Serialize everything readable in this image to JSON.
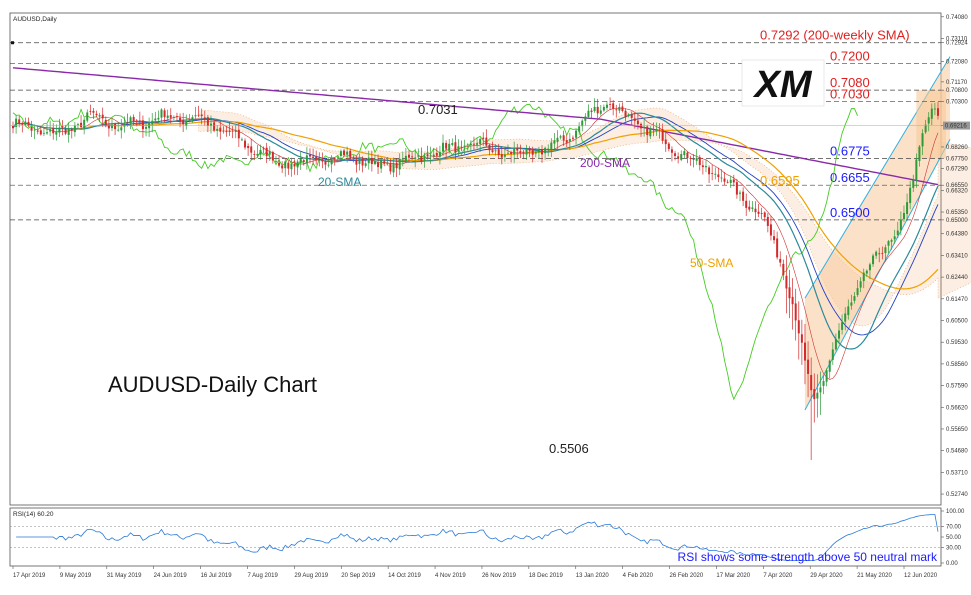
{
  "chart_data": {
    "type": "candlestick",
    "symbol_label": "AUDUSD,Daily",
    "title": "AUDUSD-Daily Chart",
    "logo_text": "XM",
    "price_axis": {
      "ylim": [
        0.5225,
        0.7425
      ],
      "ticks": [
        "0.74080",
        "0.73110",
        "0.72924",
        "0.72080",
        "0.71170",
        "0.70800",
        "0.70300",
        "0.69210",
        "0.68260",
        "0.67750",
        "0.67290",
        "0.66550",
        "0.66320",
        "0.65350",
        "0.65000",
        "0.64380",
        "0.63410",
        "0.62440",
        "0.61470",
        "0.60500",
        "0.59530",
        "0.58560",
        "0.57590",
        "0.56620",
        "0.55650",
        "0.54680",
        "0.53710",
        "0.52740"
      ],
      "current_price_tag": "0.69216"
    },
    "date_axis": {
      "labels": [
        "17 Apr 2019",
        "9 May 2019",
        "31 May 2019",
        "24 Jun 2019",
        "16 Jul 2019",
        "7 Aug 2019",
        "29 Aug 2019",
        "20 Sep 2019",
        "14 Oct 2019",
        "4 Nov 2019",
        "26 Nov 2019",
        "18 Dec 2019",
        "13 Jan 2020",
        "4 Feb 2020",
        "26 Feb 2020",
        "17 Mar 2020",
        "7 Apr 2020",
        "29 Apr 2020",
        "21 May 2020",
        "12 Jun 2020"
      ]
    },
    "levels": [
      {
        "value": 0.7292,
        "label": "0.7292 (200-weekly SMA)",
        "color": "#e02020",
        "style": "dashed"
      },
      {
        "value": 0.72,
        "label": "0.7200",
        "color": "#e02020",
        "style": "dashed"
      },
      {
        "value": 0.708,
        "label": "0.7080",
        "color": "#e02020",
        "style": "dashed"
      },
      {
        "value": 0.703,
        "label": "0.7030",
        "color": "#e02020",
        "style": "dashed"
      },
      {
        "value": 0.6775,
        "label": "0.6775",
        "color": "#1a1aff",
        "style": "dashed"
      },
      {
        "value": 0.6655,
        "label": "0.6655",
        "color": "#1a1aff",
        "style": "dashed"
      },
      {
        "value": 0.65,
        "label": "0.6500",
        "color": "#1a1aff",
        "style": "dashed"
      }
    ],
    "annotations": [
      {
        "text": "0.7031",
        "value": 0.7031,
        "color": "#222222"
      },
      {
        "text": "0.5506",
        "value": 0.5506,
        "color": "#222222"
      },
      {
        "text": "0.6595",
        "value": 0.6595,
        "color": "#f0a000"
      }
    ],
    "series": [
      {
        "name": "20-SMA",
        "color": "#2a8a9a"
      },
      {
        "name": "50-SMA",
        "color": "#f0a000"
      },
      {
        "name": "200-SMA",
        "color": "#8a2aa8"
      }
    ],
    "indicators": {
      "ichimoku_lagging_color": "#44cc22",
      "cloud_color": "#f0a060",
      "channel_color": "#f7c99a",
      "channel_border": "#30b0e0"
    },
    "rsi": {
      "label": "RSI(14) 60.20",
      "period": 14,
      "value": 60.2,
      "ylim": [
        0,
        100
      ],
      "ticks": [
        "100.00",
        "70.00",
        "50.00",
        "30.00",
        "0.00"
      ],
      "note": "RSI shows some strength above 50 neutral mark",
      "color": "#2a7ad8"
    }
  }
}
